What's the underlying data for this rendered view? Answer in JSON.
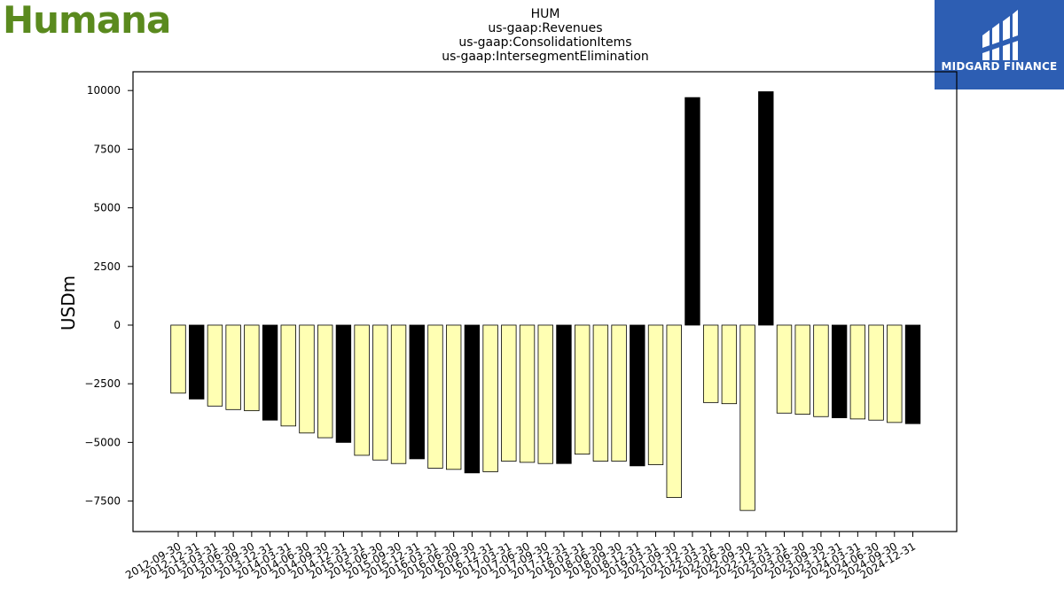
{
  "branding": {
    "company_logo_text": "Humana",
    "badge_text": "MIDGARD FINANCE",
    "accent_color": "#2d5eb3",
    "logo_color": "#5a8a1e"
  },
  "chart_data": {
    "type": "bar",
    "title_lines": [
      "HUM",
      "us-gaap:Revenues",
      "us-gaap:ConsolidationItems",
      "us-gaap:IntersegmentElimination"
    ],
    "xlabel": "",
    "ylabel": "USDm",
    "ylim": [
      -8800,
      10800
    ],
    "yticks": [
      -7500,
      -5000,
      -2500,
      0,
      2500,
      5000,
      7500,
      10000
    ],
    "ytick_labels": [
      "−7500",
      "−5000",
      "−2500",
      "0",
      "2500",
      "5000",
      "7500",
      "10000"
    ],
    "grid": false,
    "colors": {
      "quarter": "#ffffb3",
      "annual": "#000000",
      "edge": "#000000"
    },
    "categories": [
      "2012-09-30",
      "2012-12-31",
      "2013-03-31",
      "2013-06-30",
      "2013-09-30",
      "2013-12-31",
      "2014-03-31",
      "2014-06-30",
      "2014-09-30",
      "2014-12-31",
      "2015-03-31",
      "2015-06-30",
      "2015-09-30",
      "2015-12-31",
      "2016-03-31",
      "2016-06-30",
      "2016-09-30",
      "2016-12-31",
      "2017-03-31",
      "2017-06-30",
      "2017-09-30",
      "2017-12-31",
      "2018-03-31",
      "2018-06-30",
      "2018-09-30",
      "2018-12-31",
      "2019-03-31",
      "2021-09-30",
      "2021-12-31",
      "2022-03-31",
      "2022-06-30",
      "2022-09-30",
      "2022-12-31",
      "2023-03-31",
      "2023-06-30",
      "2023-09-30",
      "2023-12-31",
      "2024-03-31",
      "2024-06-30",
      "2024-09-30",
      "2024-12-31"
    ],
    "values": [
      -2900,
      -3150,
      -3450,
      -3600,
      -3650,
      -4050,
      -4300,
      -4600,
      -4800,
      -5000,
      -5550,
      -5750,
      -5900,
      -5700,
      -6100,
      -6150,
      -6300,
      -6250,
      -5800,
      -5850,
      -5900,
      -5900,
      -5500,
      -5800,
      -5800,
      -6000,
      -5950,
      -7350,
      9700,
      -3300,
      -3350,
      -7900,
      9950,
      -3750,
      -3800,
      -3900,
      -3950,
      -4000,
      -4050,
      -4150,
      -4200
    ],
    "annual": [
      false,
      true,
      false,
      false,
      false,
      true,
      false,
      false,
      false,
      true,
      false,
      false,
      false,
      true,
      false,
      false,
      true,
      false,
      false,
      false,
      false,
      true,
      false,
      false,
      false,
      true,
      false,
      false,
      true,
      false,
      false,
      false,
      true,
      false,
      false,
      false,
      true,
      false,
      false,
      false,
      true
    ]
  }
}
